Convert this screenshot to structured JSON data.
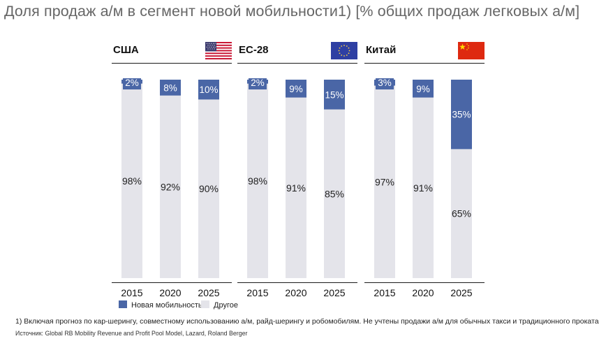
{
  "title": "Доля продаж а/м в сегмент новой мобильности1)  [% общих продаж легковых а/м]",
  "colors": {
    "new_mobility": "#4a66a6",
    "other": "#e4e4ea"
  },
  "legend": [
    {
      "label": "Новая мобильность",
      "color": "#4a66a6"
    },
    {
      "label": "Другое",
      "color": "#e4e4ea"
    }
  ],
  "chart_data": [
    {
      "type": "bar",
      "stacked": true,
      "title": "США",
      "flag_icon": "usa-flag-icon",
      "categories": [
        "2015",
        "2020",
        "2025"
      ],
      "series": [
        {
          "name": "Новая мобильность",
          "values": [
            2,
            8,
            10
          ],
          "labels": [
            "2%",
            "8%",
            "10%"
          ]
        },
        {
          "name": "Другое",
          "values": [
            98,
            92,
            90
          ],
          "labels": [
            "98%",
            "92%",
            "90%"
          ]
        }
      ],
      "ylim": [
        0,
        100
      ]
    },
    {
      "type": "bar",
      "stacked": true,
      "title": "ЕС-28",
      "flag_icon": "eu-flag-icon",
      "categories": [
        "2015",
        "2020",
        "2025"
      ],
      "series": [
        {
          "name": "Новая мобильность",
          "values": [
            2,
            9,
            15
          ],
          "labels": [
            "2%",
            "9%",
            "15%"
          ]
        },
        {
          "name": "Другое",
          "values": [
            98,
            91,
            85
          ],
          "labels": [
            "98%",
            "91%",
            "85%"
          ]
        }
      ],
      "ylim": [
        0,
        100
      ]
    },
    {
      "type": "bar",
      "stacked": true,
      "title": "Китай",
      "flag_icon": "china-flag-icon",
      "categories": [
        "2015",
        "2020",
        "2025"
      ],
      "series": [
        {
          "name": "Новая мобильность",
          "values": [
            3,
            9,
            35
          ],
          "labels": [
            "3%",
            "9%",
            "35%"
          ]
        },
        {
          "name": "Другое",
          "values": [
            97,
            91,
            65
          ],
          "labels": [
            "97%",
            "91%",
            "65%"
          ]
        }
      ],
      "ylim": [
        0,
        100
      ]
    }
  ],
  "footnote": "1) Включая прогноз по кар-шерингу, совместному использованию а/м, райд-шерингу и робомобилям. Не учтены продажи а/м для обычных такси и традиционного проката",
  "source": "Источник: Global RB Mobility Revenue and Profit Pool Model, Lazard, Roland Berger"
}
